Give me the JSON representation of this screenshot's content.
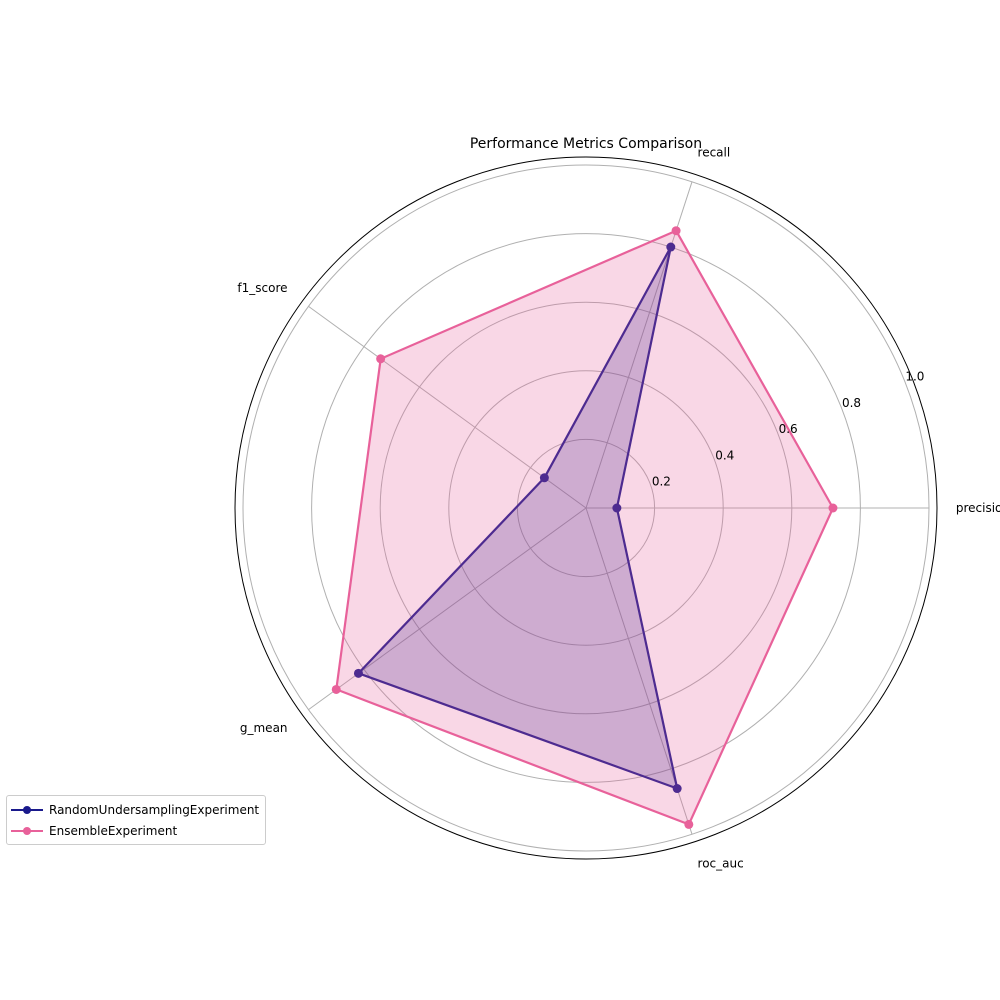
{
  "chart_data": {
    "type": "radar",
    "title": "Performance Metrics Comparison",
    "axes": [
      "precision",
      "recall",
      "f1_score",
      "g_mean",
      "roc_auc"
    ],
    "r_ticks": [
      0.2,
      0.4,
      0.6,
      0.8,
      1.0
    ],
    "r_tick_labels": [
      "0.2",
      "0.4",
      "0.6",
      "0.8",
      "1.0"
    ],
    "rlim": [
      0,
      1.0
    ],
    "grid": true,
    "legend_position": "lower-left",
    "series": [
      {
        "name": "RandomUndersamplingExperiment",
        "values": [
          0.09,
          0.8,
          0.15,
          0.82,
          0.86
        ],
        "color": "#1a1a8c"
      },
      {
        "name": "EnsembleExperiment",
        "values": [
          0.72,
          0.85,
          0.74,
          0.9,
          0.97
        ],
        "color": "#e8619a"
      }
    ]
  }
}
